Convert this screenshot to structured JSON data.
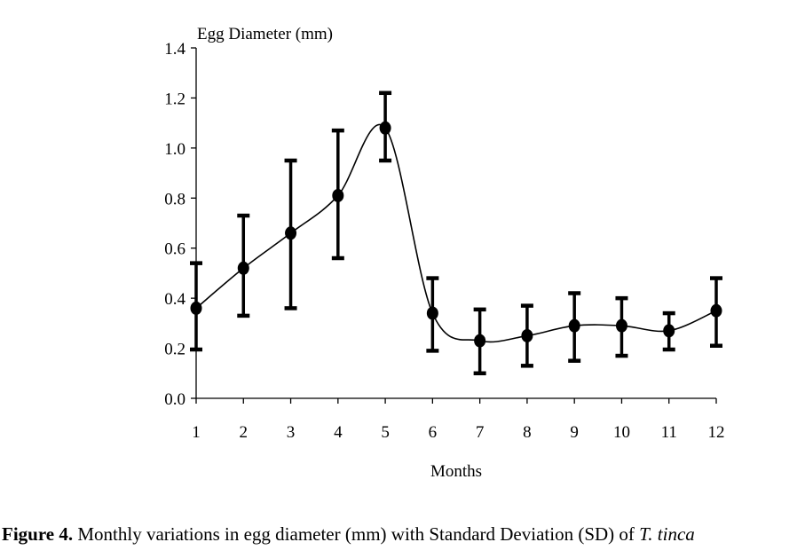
{
  "chart_data": {
    "type": "line",
    "title": "",
    "ylabel": "Egg Diameter (mm)",
    "xlabel": "Months",
    "x": [
      1,
      2,
      3,
      4,
      5,
      6,
      7,
      8,
      9,
      10,
      11,
      12
    ],
    "xticks": [
      "1",
      "2",
      "3",
      "4",
      "5",
      "6",
      "7",
      "8",
      "9",
      "10",
      "11",
      "12"
    ],
    "yticks": [
      "0.0",
      "0.2",
      "0.4",
      "0.6",
      "0.8",
      "1.0",
      "1.2",
      "1.4"
    ],
    "ylim": [
      0,
      1.4
    ],
    "grid": false,
    "smoothed": true,
    "series": [
      {
        "name": "Egg diameter",
        "values": [
          0.36,
          0.52,
          0.66,
          0.81,
          1.08,
          0.34,
          0.23,
          0.25,
          0.29,
          0.29,
          0.27,
          0.35
        ],
        "error_upper": [
          0.54,
          0.73,
          0.95,
          1.07,
          1.22,
          0.48,
          0.355,
          0.37,
          0.42,
          0.4,
          0.34,
          0.48
        ],
        "error_lower": [
          0.195,
          0.33,
          0.36,
          0.56,
          0.95,
          0.19,
          0.1,
          0.13,
          0.15,
          0.17,
          0.195,
          0.21
        ]
      }
    ]
  },
  "caption": {
    "label": "Figure 4.",
    "text": " Monthly variations in egg diameter (mm) with Standard Deviation (SD) of ",
    "species": "T. tinca"
  }
}
